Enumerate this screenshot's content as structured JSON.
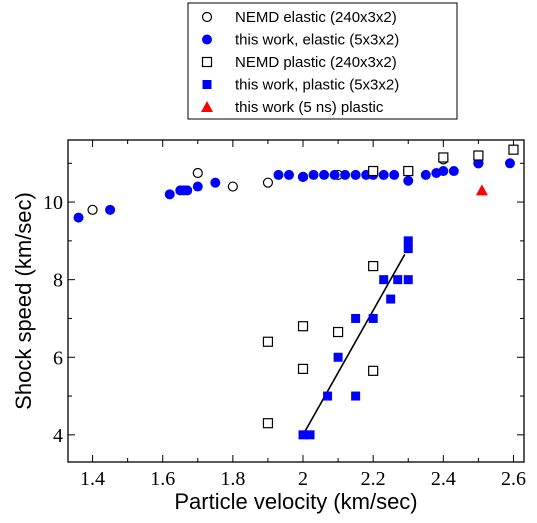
{
  "chart_data": {
    "type": "scatter",
    "xlabel": "Particle velocity (km/sec)",
    "ylabel": "Shock speed (km/sec)",
    "xlim": [
      1.33,
      2.63
    ],
    "ylim": [
      3.3,
      11.6
    ],
    "xticks": [
      1.4,
      1.6,
      1.8,
      2.0,
      2.2,
      2.4,
      2.6
    ],
    "xtick_labels": [
      "1.4",
      "1.6",
      "1.8",
      "2",
      "2.2",
      "2.4",
      "2.6"
    ],
    "yticks": [
      4,
      6,
      8,
      10
    ],
    "ytick_labels": [
      "4",
      "6",
      "8",
      "10"
    ],
    "legend_position": "top-center",
    "series": [
      {
        "name": "NEMD elastic (240x3x2)",
        "marker": "circle-open",
        "color": "#000000",
        "x": [
          1.4,
          1.7,
          1.8,
          1.9,
          2.0,
          2.1,
          2.2,
          2.3,
          2.4,
          2.5
        ],
        "y": [
          9.8,
          10.75,
          10.4,
          10.5,
          10.65,
          10.7,
          10.75,
          10.8,
          11.1,
          11.0
        ]
      },
      {
        "name": "this work, elastic (5x3x2)",
        "marker": "circle-filled",
        "color": "#0000ff",
        "x": [
          1.36,
          1.45,
          1.62,
          1.65,
          1.66,
          1.67,
          1.7,
          1.75,
          1.93,
          1.96,
          2.0,
          2.03,
          2.06,
          2.09,
          2.12,
          2.15,
          2.18,
          2.2,
          2.23,
          2.26,
          2.3,
          2.35,
          2.38,
          2.4,
          2.43,
          2.5,
          2.59
        ],
        "y": [
          9.6,
          9.8,
          10.2,
          10.3,
          10.3,
          10.3,
          10.4,
          10.5,
          10.7,
          10.7,
          10.65,
          10.7,
          10.7,
          10.7,
          10.7,
          10.7,
          10.7,
          10.7,
          10.7,
          10.7,
          10.55,
          10.7,
          10.75,
          10.8,
          10.8,
          11.0,
          11.0
        ]
      },
      {
        "name": "NEMD plastic (240x3x2)",
        "marker": "square-open",
        "color": "#000000",
        "x": [
          1.9,
          1.9,
          2.0,
          2.0,
          2.1,
          2.2,
          2.2,
          2.2,
          2.3,
          2.4,
          2.5,
          2.6
        ],
        "y": [
          4.3,
          6.4,
          6.8,
          5.7,
          6.65,
          8.35,
          5.65,
          10.8,
          10.8,
          11.15,
          11.2,
          11.35
        ]
      },
      {
        "name": "this work, plastic (5x3x2)",
        "marker": "square-filled",
        "color": "#0000ff",
        "x": [
          2.0,
          2.02,
          2.07,
          2.1,
          2.15,
          2.15,
          2.2,
          2.23,
          2.25,
          2.27,
          2.3,
          2.3,
          2.3
        ],
        "y": [
          4.0,
          4.0,
          5.0,
          6.0,
          5.0,
          7.0,
          7.0,
          8.0,
          7.5,
          8.0,
          8.0,
          8.8,
          9.0
        ]
      },
      {
        "name": "this work (5 ns) plastic",
        "marker": "triangle-filled",
        "color": "#ff0000",
        "x": [
          2.51
        ],
        "y": [
          10.3
        ]
      }
    ],
    "fit_line": {
      "x": [
        2.0,
        2.29
      ],
      "y": [
        4.0,
        8.65
      ],
      "color": "#000000"
    }
  }
}
